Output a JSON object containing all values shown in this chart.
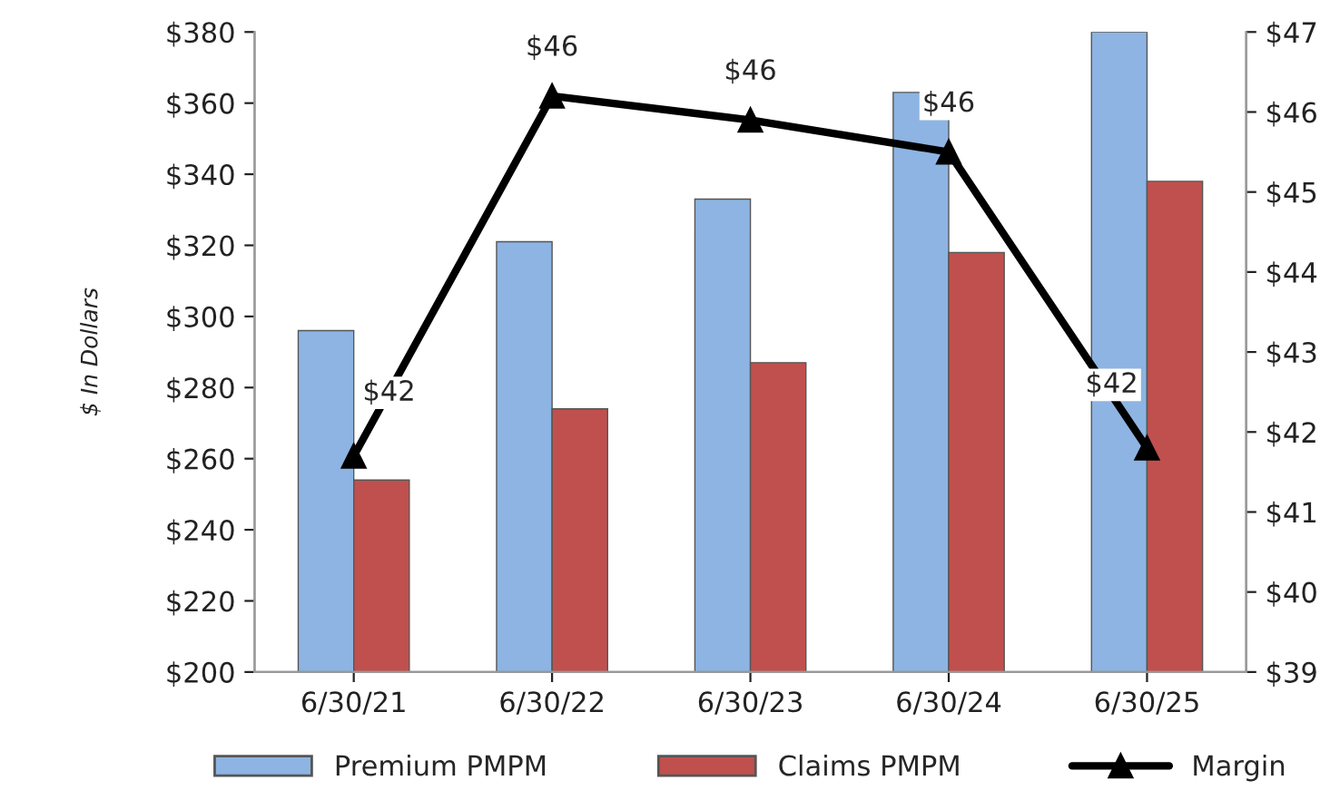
{
  "chart_data": {
    "type": "bar",
    "ylabel": "$ In Dollars",
    "categories": [
      "6/30/21",
      "6/30/22",
      "6/30/23",
      "6/30/24",
      "6/30/25"
    ],
    "series": [
      {
        "name": "Premium PMPM",
        "color": "#8db4e2",
        "values": [
          296,
          321,
          333,
          363,
          380
        ]
      },
      {
        "name": "Claims PMPM",
        "color": "#c0504d",
        "values": [
          254,
          274,
          287,
          318,
          338
        ]
      },
      {
        "name": "Margin",
        "type": "line",
        "axis": "y2",
        "color": "#000000",
        "marker": "triangle",
        "values": [
          41.7,
          46.2,
          45.9,
          45.5,
          41.8
        ],
        "value_labels": [
          "$42",
          "$46",
          "$46",
          "$46",
          "$42"
        ]
      }
    ],
    "ylim": [
      200,
      380
    ],
    "yticks": [
      {
        "value": 200,
        "label": "$200"
      },
      {
        "value": 220,
        "label": "$220"
      },
      {
        "value": 240,
        "label": "$240"
      },
      {
        "value": 260,
        "label": "$260"
      },
      {
        "value": 280,
        "label": "$280"
      },
      {
        "value": 300,
        "label": "$300"
      },
      {
        "value": 320,
        "label": "$320"
      },
      {
        "value": 340,
        "label": "$340"
      },
      {
        "value": 360,
        "label": "$360"
      },
      {
        "value": 380,
        "label": "$380"
      }
    ],
    "y2lim": [
      39,
      47
    ],
    "y2ticks": [
      {
        "value": 39,
        "label": "$39"
      },
      {
        "value": 40,
        "label": "$40"
      },
      {
        "value": 41,
        "label": "$41"
      },
      {
        "value": 42,
        "label": "$42"
      },
      {
        "value": 43,
        "label": "$43"
      },
      {
        "value": 44,
        "label": "$44"
      },
      {
        "value": 45,
        "label": "$45"
      },
      {
        "value": 46,
        "label": "$46"
      },
      {
        "value": 47,
        "label": "$47"
      }
    ],
    "grid": false,
    "legend": "bottom"
  }
}
